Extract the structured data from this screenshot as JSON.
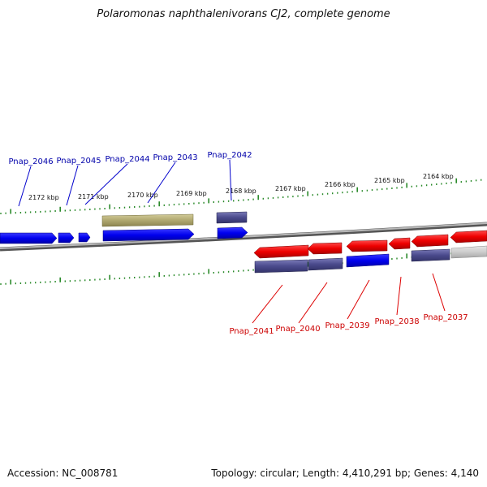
{
  "title": "Polaromonas naphthalenivorans CJ2, complete genome",
  "footer": {
    "accession": "Accession: NC_008781",
    "summary": "Topology: circular; Length: 4,410,291 bp; Genes: 4,140"
  },
  "ruler": {
    "tick_labels": [
      "2172 kbp",
      "2171 kbp",
      "2170 kbp",
      "2169 kbp",
      "2168 kbp",
      "2167 kbp",
      "2166 kbp",
      "2165 kbp",
      "2164 kbp"
    ]
  },
  "genes_forward": [
    {
      "id": "Pnap_2046"
    },
    {
      "id": "Pnap_2045"
    },
    {
      "id": "Pnap_2044"
    },
    {
      "id": "Pnap_2043"
    },
    {
      "id": "Pnap_2042"
    }
  ],
  "genes_reverse": [
    {
      "id": "Pnap_2041"
    },
    {
      "id": "Pnap_2040"
    },
    {
      "id": "Pnap_2039"
    },
    {
      "id": "Pnap_2038"
    },
    {
      "id": "Pnap_2037"
    }
  ],
  "colors": {
    "forward_gene": "#0000ee",
    "reverse_gene": "#ee0000",
    "forward_label": "#0000aa",
    "reverse_label": "#cc0000",
    "cds_slate": "#4a4a8c",
    "khaki": "#b0a870",
    "tick_green": "#2a8a2a",
    "backbone": "#888888"
  }
}
